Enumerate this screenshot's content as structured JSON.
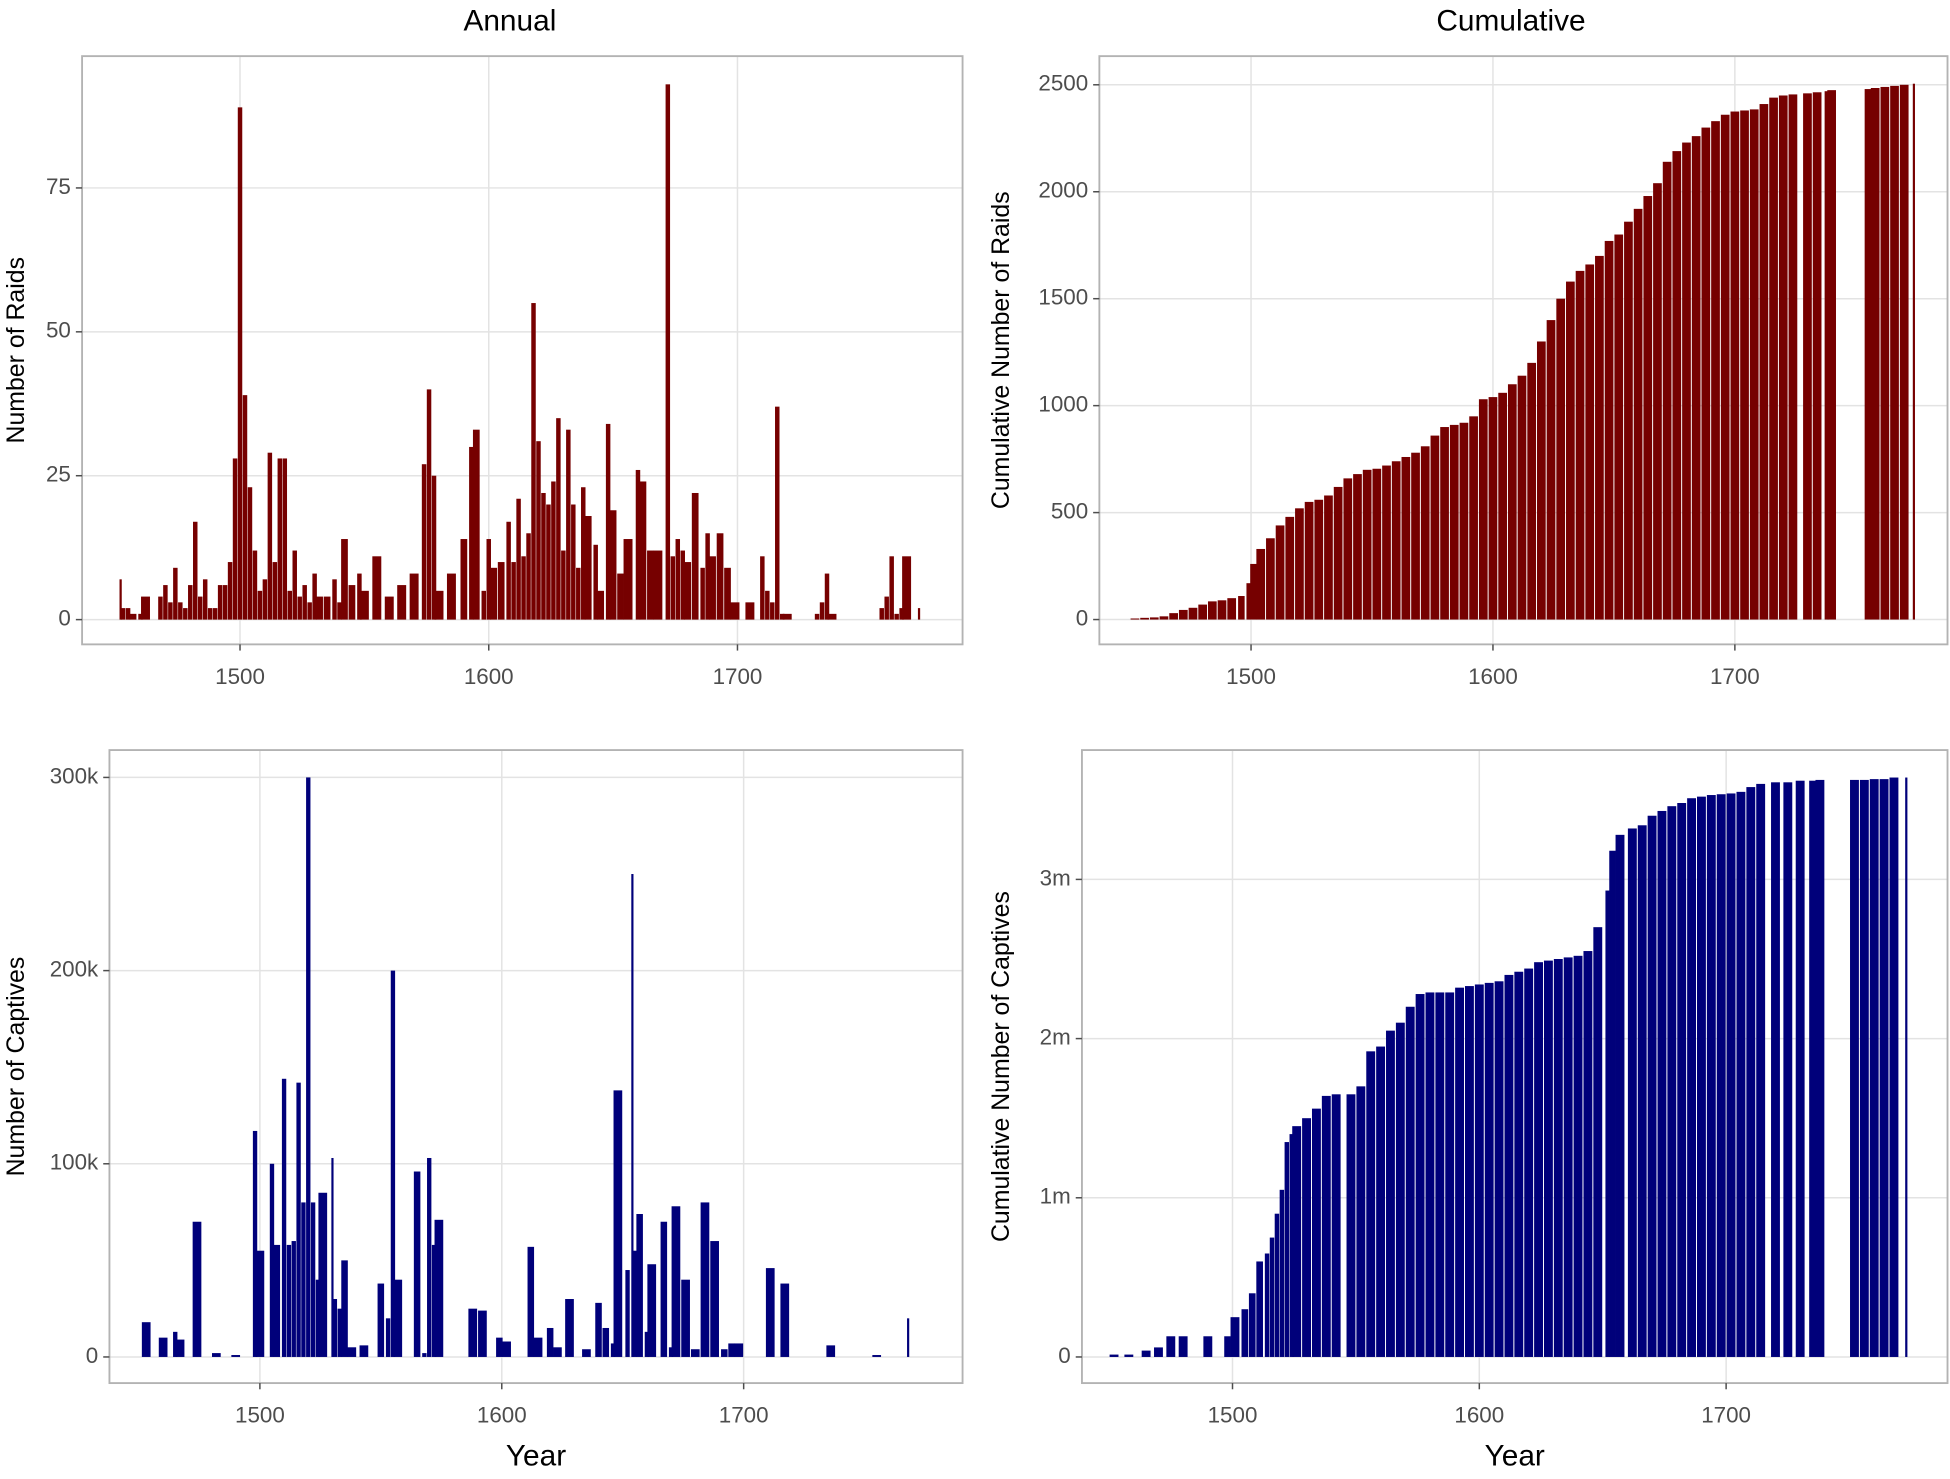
{
  "chart_data": [
    {
      "type": "bar",
      "title": "Annual",
      "ylabel": "Number of Raids",
      "color": "#760000",
      "x": [
        1452,
        1453,
        1455,
        1457,
        1460,
        1462,
        1468,
        1470,
        1472,
        1474,
        1476,
        1478,
        1480,
        1482,
        1484,
        1486,
        1488,
        1490,
        1492,
        1494,
        1496,
        1498,
        1500,
        1502,
        1504,
        1506,
        1508,
        1510,
        1512,
        1514,
        1516,
        1518,
        1520,
        1522,
        1524,
        1526,
        1528,
        1530,
        1532,
        1535,
        1538,
        1540,
        1542,
        1545,
        1548,
        1550,
        1555,
        1560,
        1565,
        1570,
        1574,
        1576,
        1578,
        1580,
        1585,
        1590,
        1593,
        1595,
        1598,
        1600,
        1602,
        1605,
        1608,
        1610,
        1612,
        1614,
        1616,
        1618,
        1620,
        1622,
        1624,
        1626,
        1628,
        1630,
        1632,
        1634,
        1636,
        1638,
        1640,
        1643,
        1645,
        1648,
        1650,
        1653,
        1656,
        1660,
        1662,
        1665,
        1668,
        1672,
        1674,
        1676,
        1678,
        1680,
        1683,
        1686,
        1688,
        1690,
        1693,
        1696,
        1699,
        1705,
        1710,
        1712,
        1714,
        1716,
        1718,
        1720,
        1732,
        1734,
        1736,
        1738,
        1758,
        1760,
        1762,
        1764,
        1766,
        1768,
        1773
      ],
      "values": [
        7,
        2,
        2,
        1,
        1,
        4,
        4,
        6,
        3,
        9,
        3,
        2,
        6,
        17,
        4,
        7,
        2,
        2,
        6,
        6,
        10,
        28,
        89,
        39,
        23,
        12,
        5,
        7,
        29,
        10,
        28,
        28,
        5,
        12,
        4,
        6,
        3,
        8,
        4,
        4,
        7,
        3,
        14,
        6,
        8,
        5,
        11,
        4,
        6,
        8,
        27,
        40,
        25,
        5,
        8,
        14,
        30,
        33,
        5,
        14,
        9,
        10,
        17,
        10,
        21,
        11,
        15,
        55,
        31,
        22,
        20,
        24,
        35,
        12,
        33,
        20,
        9,
        23,
        18,
        13,
        5,
        34,
        19,
        8,
        14,
        26,
        24,
        12,
        12,
        93,
        11,
        14,
        12,
        10,
        22,
        9,
        15,
        11,
        15,
        9,
        3,
        3,
        11,
        5,
        3,
        37,
        1,
        1,
        1,
        3,
        8,
        1,
        2,
        4,
        11,
        1,
        2,
        11,
        2
      ],
      "xlim": [
        1436.5,
        1790.5
      ],
      "xticks": [
        1500,
        1600,
        1700
      ],
      "ylim": [
        -4.3,
        97.9
      ],
      "yticks": [
        0,
        25,
        50,
        75
      ],
      "grid": true
    },
    {
      "type": "bar",
      "title": "Cumulative",
      "ylabel": "Cumulative Number of Raids",
      "color": "#760000",
      "x": [
        1452,
        1456,
        1460,
        1464,
        1468,
        1472,
        1476,
        1480,
        1484,
        1488,
        1492,
        1496,
        1499,
        1501,
        1504,
        1508,
        1512,
        1516,
        1520,
        1524,
        1528,
        1532,
        1536,
        1540,
        1544,
        1548,
        1552,
        1556,
        1560,
        1564,
        1568,
        1572,
        1576,
        1580,
        1584,
        1588,
        1592,
        1596,
        1600,
        1604,
        1608,
        1612,
        1616,
        1620,
        1624,
        1628,
        1632,
        1636,
        1640,
        1644,
        1648,
        1652,
        1656,
        1660,
        1664,
        1668,
        1672,
        1676,
        1680,
        1684,
        1688,
        1692,
        1696,
        1700,
        1704,
        1708,
        1712,
        1716,
        1720,
        1724,
        1730,
        1734,
        1738,
        1740,
        1755,
        1758,
        1762,
        1766,
        1770,
        1774
      ],
      "values": [
        5,
        8,
        10,
        15,
        30,
        45,
        55,
        70,
        85,
        90,
        100,
        110,
        170,
        260,
        330,
        380,
        440,
        480,
        520,
        550,
        560,
        580,
        620,
        660,
        680,
        700,
        705,
        720,
        740,
        760,
        780,
        810,
        860,
        900,
        910,
        920,
        950,
        1030,
        1040,
        1060,
        1100,
        1140,
        1200,
        1300,
        1400,
        1500,
        1580,
        1630,
        1660,
        1700,
        1770,
        1800,
        1860,
        1920,
        1980,
        2040,
        2140,
        2190,
        2230,
        2260,
        2300,
        2330,
        2360,
        2375,
        2380,
        2385,
        2410,
        2440,
        2450,
        2455,
        2460,
        2465,
        2470,
        2475,
        2480,
        2485,
        2490,
        2495,
        2500,
        2505
      ],
      "xlim": [
        1437.3,
        1787.9
      ],
      "xticks": [
        1500,
        1600,
        1700
      ],
      "ylim": [
        -116,
        2634
      ],
      "yticks": [
        0,
        500,
        1000,
        1500,
        2000,
        2500
      ],
      "grid": true
    },
    {
      "type": "bar",
      "ylabel": "Number of Captives",
      "xlabel": "Year",
      "color": "#00007a",
      "x": [
        1453,
        1460,
        1465,
        1467,
        1474,
        1482,
        1490,
        1498,
        1500,
        1505,
        1507,
        1510,
        1512,
        1514,
        1516,
        1518,
        1520,
        1522,
        1524,
        1526,
        1530,
        1531,
        1533,
        1535,
        1538,
        1543,
        1550,
        1553,
        1555,
        1557,
        1565,
        1568,
        1570,
        1572,
        1574,
        1588,
        1592,
        1599,
        1602,
        1612,
        1615,
        1620,
        1623,
        1628,
        1635,
        1640,
        1643,
        1646,
        1648,
        1652,
        1654,
        1655,
        1657,
        1660,
        1662,
        1667,
        1670,
        1672,
        1676,
        1680,
        1684,
        1688,
        1692,
        1695,
        1698,
        1711,
        1717,
        1736,
        1755,
        1768
      ],
      "values": [
        18000,
        10000,
        13000,
        9000,
        70000,
        2000,
        1000,
        117000,
        55000,
        100000,
        58000,
        144000,
        58000,
        60000,
        142000,
        80000,
        300000,
        80000,
        40000,
        85000,
        103000,
        30000,
        25000,
        50000,
        5000,
        6000,
        38000,
        20000,
        200000,
        40000,
        96000,
        2000,
        103000,
        58000,
        71000,
        25000,
        24000,
        10000,
        8000,
        57000,
        10000,
        15000,
        5000,
        30000,
        4000,
        28000,
        15000,
        7000,
        138000,
        45000,
        250000,
        55000,
        74000,
        13000,
        48000,
        70000,
        5000,
        78000,
        40000,
        4000,
        80000,
        60000,
        4000,
        7000,
        7000,
        46000,
        38000,
        6000,
        1000,
        20000
      ],
      "xlim": [
        1437.8,
        1790.5
      ],
      "xticks": [
        1500,
        1600,
        1700
      ],
      "ylim": [
        -13519,
        314163
      ],
      "yticks": [
        0,
        {
          "value": 100000,
          "label": "100k"
        },
        {
          "value": 200000,
          "label": "200k"
        },
        {
          "value": 300000,
          "label": "300k"
        }
      ],
      "grid": true
    },
    {
      "type": "bar",
      "ylabel": "Cumulative Number of Captives",
      "xlabel": "Year",
      "color": "#00007a",
      "x": [
        1452,
        1458,
        1465,
        1470,
        1475,
        1480,
        1490,
        1498,
        1501,
        1505,
        1508,
        1511,
        1514,
        1516,
        1518,
        1520,
        1522,
        1524,
        1526,
        1530,
        1534,
        1538,
        1542,
        1548,
        1552,
        1556,
        1560,
        1564,
        1568,
        1572,
        1576,
        1580,
        1584,
        1588,
        1592,
        1596,
        1600,
        1604,
        1608,
        1612,
        1616,
        1620,
        1624,
        1628,
        1632,
        1636,
        1640,
        1644,
        1648,
        1652,
        1654,
        1657,
        1662,
        1666,
        1670,
        1674,
        1678,
        1682,
        1686,
        1690,
        1694,
        1698,
        1702,
        1706,
        1710,
        1714,
        1720,
        1725,
        1730,
        1735,
        1738,
        1752,
        1756,
        1760,
        1764,
        1768,
        1773
      ],
      "values": [
        15000,
        15000,
        40000,
        60000,
        130000,
        130000,
        130000,
        130000,
        250000,
        300000,
        400000,
        600000,
        650000,
        750000,
        900000,
        1050000,
        1350000,
        1400000,
        1450000,
        1500000,
        1560000,
        1640000,
        1650000,
        1650000,
        1700000,
        1920000,
        1950000,
        2050000,
        2100000,
        2200000,
        2280000,
        2290000,
        2290000,
        2290000,
        2320000,
        2330000,
        2340000,
        2350000,
        2360000,
        2400000,
        2420000,
        2440000,
        2480000,
        2490000,
        2500000,
        2510000,
        2520000,
        2550000,
        2700000,
        2930000,
        3180000,
        3280000,
        3320000,
        3340000,
        3400000,
        3430000,
        3460000,
        3480000,
        3510000,
        3520000,
        3530000,
        3535000,
        3540000,
        3550000,
        3580000,
        3600000,
        3610000,
        3610000,
        3620000,
        3620000,
        3625000,
        3625000,
        3625000,
        3630000,
        3630000,
        3640000,
        3640000
      ],
      "xlim": [
        1439,
        1789.7
      ],
      "xticks": [
        1500,
        1600,
        1700
      ],
      "ylim": [
        -164000,
        3812500
      ],
      "yticks": [
        0,
        {
          "value": 1000000,
          "label": "1m"
        },
        {
          "value": 2000000,
          "label": "2m"
        },
        {
          "value": 3000000,
          "label": "3m"
        }
      ],
      "grid": true
    }
  ]
}
